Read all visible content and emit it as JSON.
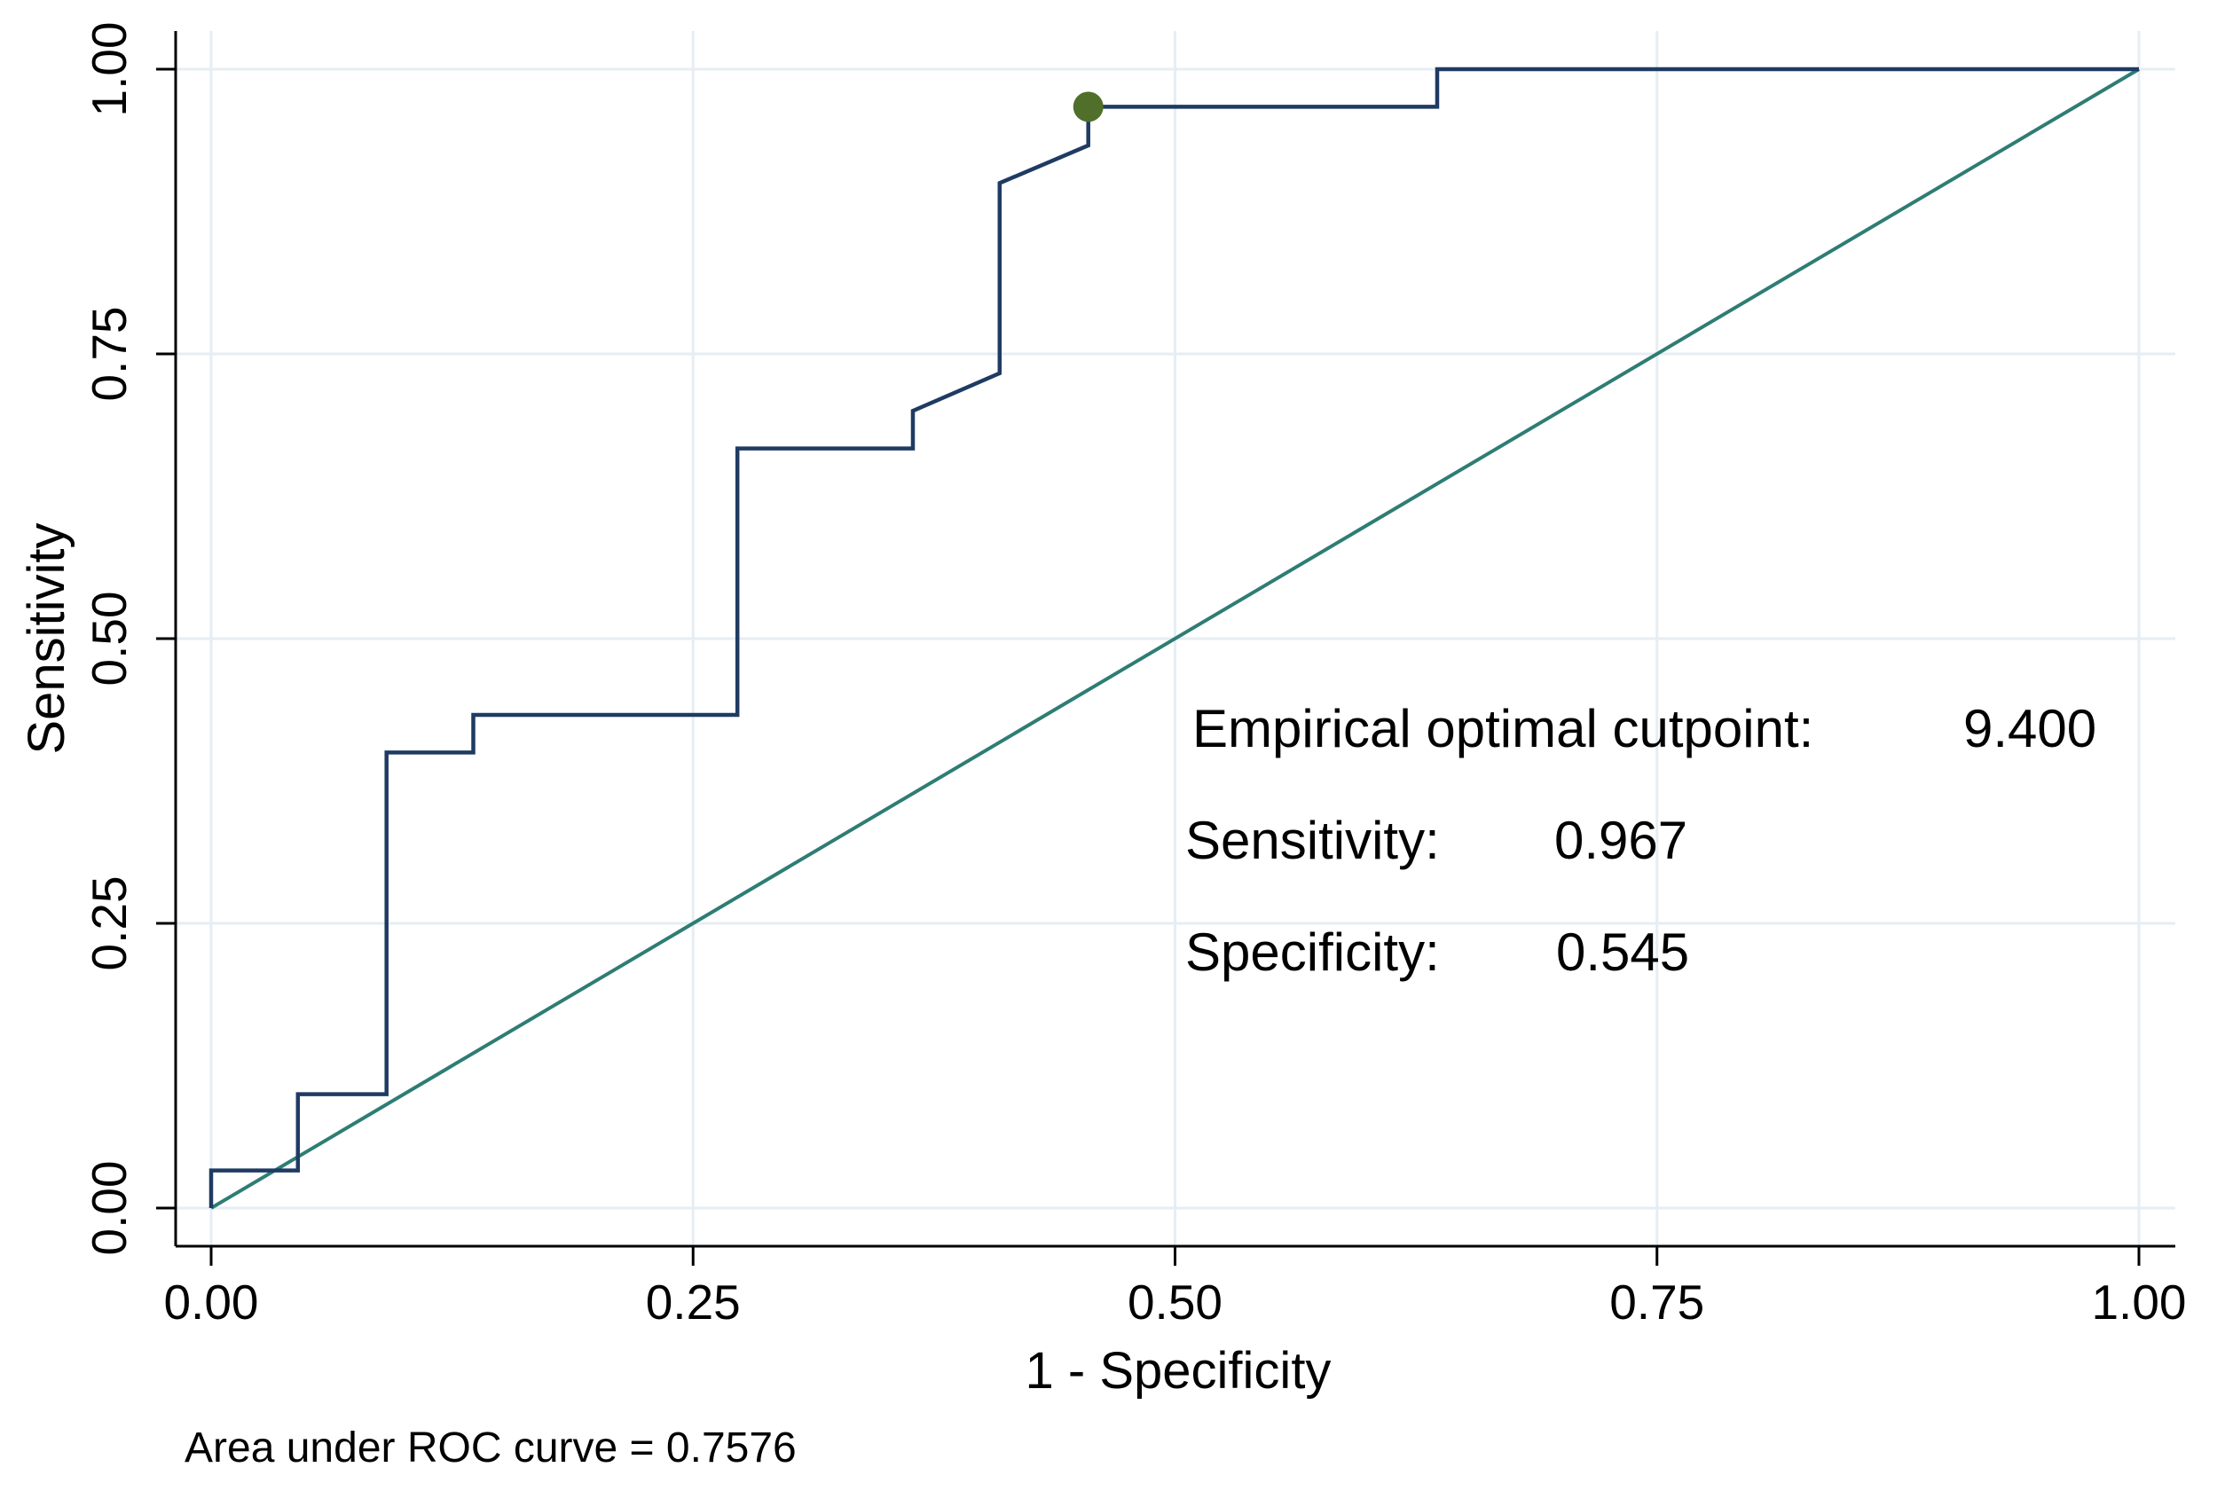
{
  "chart_data": {
    "type": "line",
    "xlabel": "1 - Specificity",
    "ylabel": "Sensitivity",
    "xlim": [
      0,
      1
    ],
    "ylim": [
      0,
      1
    ],
    "x_ticks": [
      "0.00",
      "0.25",
      "0.50",
      "0.75",
      "1.00"
    ],
    "y_ticks": [
      "0.00",
      "0.25",
      "0.50",
      "0.75",
      "1.00"
    ],
    "grid": true,
    "series": [
      {
        "kind": "roc",
        "color": "#1f3b63",
        "points": [
          [
            0.0,
            0.0
          ],
          [
            0.0,
            0.033
          ],
          [
            0.045,
            0.033
          ],
          [
            0.045,
            0.1
          ],
          [
            0.091,
            0.1
          ],
          [
            0.091,
            0.4
          ],
          [
            0.136,
            0.4
          ],
          [
            0.136,
            0.433
          ],
          [
            0.273,
            0.433
          ],
          [
            0.273,
            0.667
          ],
          [
            0.364,
            0.667
          ],
          [
            0.364,
            0.7
          ],
          [
            0.409,
            0.733
          ],
          [
            0.409,
            0.9
          ],
          [
            0.455,
            0.933
          ],
          [
            0.455,
            0.967
          ],
          [
            0.636,
            0.967
          ],
          [
            0.636,
            1.0
          ],
          [
            1.0,
            1.0
          ]
        ]
      },
      {
        "kind": "reference",
        "color": "#2e7d74",
        "points": [
          [
            0,
            0
          ],
          [
            1,
            1
          ]
        ]
      }
    ],
    "cutpoint_marker": {
      "x": 0.455,
      "y": 0.967,
      "color": "#4f6f2a"
    },
    "annotations": {
      "cutpoint_label": "Empirical optimal cutpoint:",
      "cutpoint_value": "9.400",
      "sensitivity_label": "Sensitivity:",
      "sensitivity_value": "0.967",
      "specificity_label": "Specificity:",
      "specificity_value": "0.545"
    },
    "note": "Area under ROC curve = 0.7576"
  }
}
